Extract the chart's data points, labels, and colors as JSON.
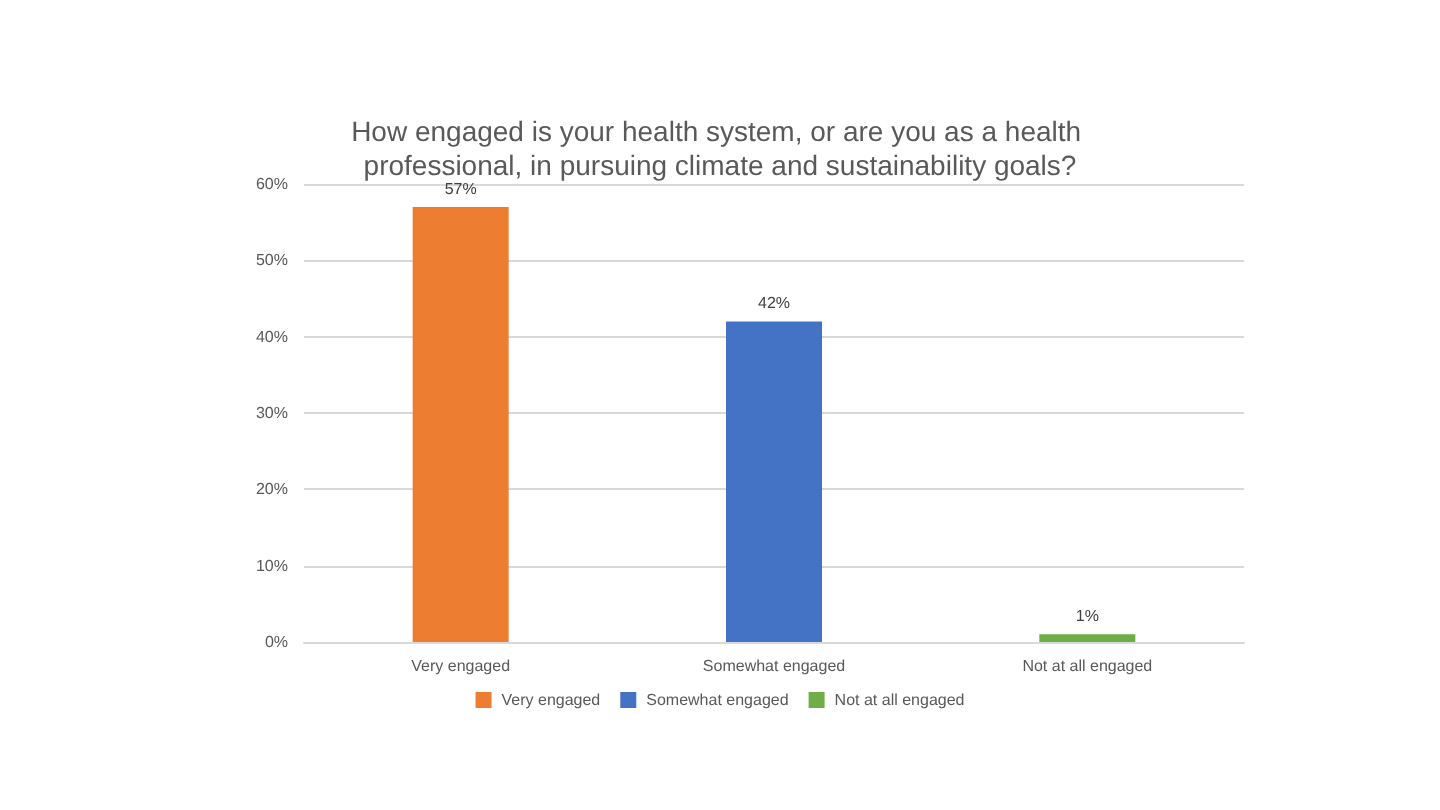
{
  "chart_data": {
    "type": "bar",
    "title": "How engaged is your health system, or are you as a health professional, in pursuing climate and sustainability goals?",
    "categories": [
      "Very engaged",
      "Somewhat engaged",
      "Not at all engaged"
    ],
    "series": [
      {
        "name": "Very engaged",
        "color": "#ed7d31",
        "values": [
          57,
          null,
          null
        ],
        "value_labels": [
          "57%",
          null,
          null
        ]
      },
      {
        "name": "Somewhat engaged",
        "color": "#4472c4",
        "values": [
          null,
          42,
          null
        ],
        "value_labels": [
          null,
          "42%",
          null
        ]
      },
      {
        "name": "Not at all engaged",
        "color": "#70ad47",
        "values": [
          null,
          null,
          1
        ],
        "value_labels": [
          null,
          null,
          "1%"
        ]
      }
    ],
    "stacked": true,
    "ylim": [
      0,
      60
    ],
    "yticks": [
      {
        "value": 0,
        "label": "0%"
      },
      {
        "value": 10,
        "label": "10%"
      },
      {
        "value": 20,
        "label": "20%"
      },
      {
        "value": 30,
        "label": "30%"
      },
      {
        "value": 40,
        "label": "40%"
      },
      {
        "value": 50,
        "label": "50%"
      },
      {
        "value": 60,
        "label": "60%"
      }
    ],
    "grid": "y",
    "legend": "bottom"
  }
}
